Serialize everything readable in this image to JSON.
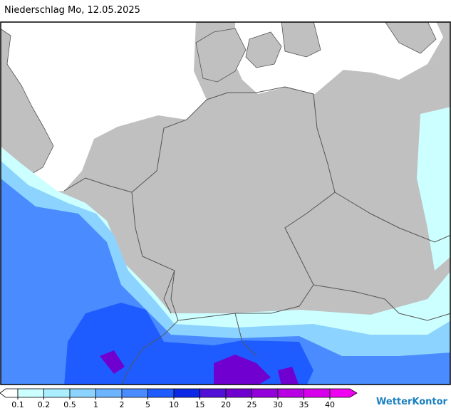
{
  "header": {
    "title": "Niederschlag Mo, 12.05.2025"
  },
  "legend": {
    "ticks": [
      0.1,
      0.2,
      0.5,
      1,
      2,
      5,
      10,
      15,
      20,
      25,
      30,
      35,
      40
    ],
    "colors": [
      "#ffffff",
      "#ccffff",
      "#aaeeff",
      "#8cd4ff",
      "#6cb4ff",
      "#4a8cff",
      "#1f5cff",
      "#0a28e6",
      "#5010d8",
      "#7000d0",
      "#9400dc",
      "#b800e4",
      "#d800ec",
      "#f000f0"
    ]
  },
  "logo": {
    "text": "WetterKontor"
  }
}
